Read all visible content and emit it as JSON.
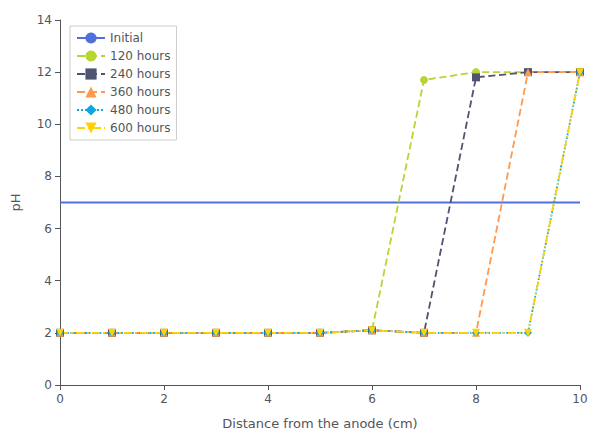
{
  "chart_data": {
    "type": "line",
    "xlabel": "Distance from the anode (cm)",
    "ylabel": "pH",
    "xlim": [
      0,
      10
    ],
    "ylim": [
      0,
      14
    ],
    "xticks": [
      0,
      2,
      4,
      6,
      8,
      10
    ],
    "yticks": [
      0,
      2,
      4,
      6,
      8,
      10,
      12,
      14
    ],
    "grid": false,
    "legend": "upper left",
    "series": [
      {
        "name": "Initial",
        "x": [
          0,
          10
        ],
        "values": [
          7.0,
          7.0
        ],
        "line_style": "solid",
        "marker": "none"
      },
      {
        "name": "120 hours",
        "x": [
          0,
          1,
          2,
          3,
          4,
          5,
          6,
          7,
          8,
          9,
          10
        ],
        "values": [
          2.0,
          2.0,
          2.0,
          2.0,
          2.0,
          2.0,
          2.1,
          11.7,
          12.0,
          12.0,
          12.0
        ],
        "line_style": "dashed",
        "marker": "circle"
      },
      {
        "name": "240 hours",
        "x": [
          0,
          1,
          2,
          3,
          4,
          5,
          6,
          7,
          8,
          9,
          10
        ],
        "values": [
          2.0,
          2.0,
          2.0,
          2.0,
          2.0,
          2.0,
          2.1,
          2.0,
          11.8,
          12.0,
          12.0
        ],
        "line_style": "dashed",
        "marker": "square"
      },
      {
        "name": "360 hours",
        "x": [
          0,
          1,
          2,
          3,
          4,
          5,
          6,
          7,
          8,
          9,
          10
        ],
        "values": [
          2.0,
          2.0,
          2.0,
          2.0,
          2.0,
          2.0,
          2.1,
          2.0,
          2.0,
          12.0,
          12.0
        ],
        "line_style": "dashed",
        "marker": "triangle"
      },
      {
        "name": "480 hours",
        "x": [
          0,
          1,
          2,
          3,
          4,
          5,
          6,
          7,
          8,
          9,
          10
        ],
        "values": [
          2.0,
          2.0,
          2.0,
          2.0,
          2.0,
          2.0,
          2.1,
          2.0,
          2.0,
          2.0,
          12.0
        ],
        "line_style": "dotted",
        "marker": "diamond"
      },
      {
        "name": "600 hours",
        "x": [
          0,
          1,
          2,
          3,
          4,
          5,
          6,
          7,
          8,
          9,
          10
        ],
        "values": [
          2.0,
          2.0,
          2.0,
          2.0,
          2.0,
          2.0,
          2.1,
          2.0,
          2.0,
          2.0,
          12.0
        ],
        "line_style": "dashdot",
        "marker": "triangle_down"
      }
    ]
  }
}
